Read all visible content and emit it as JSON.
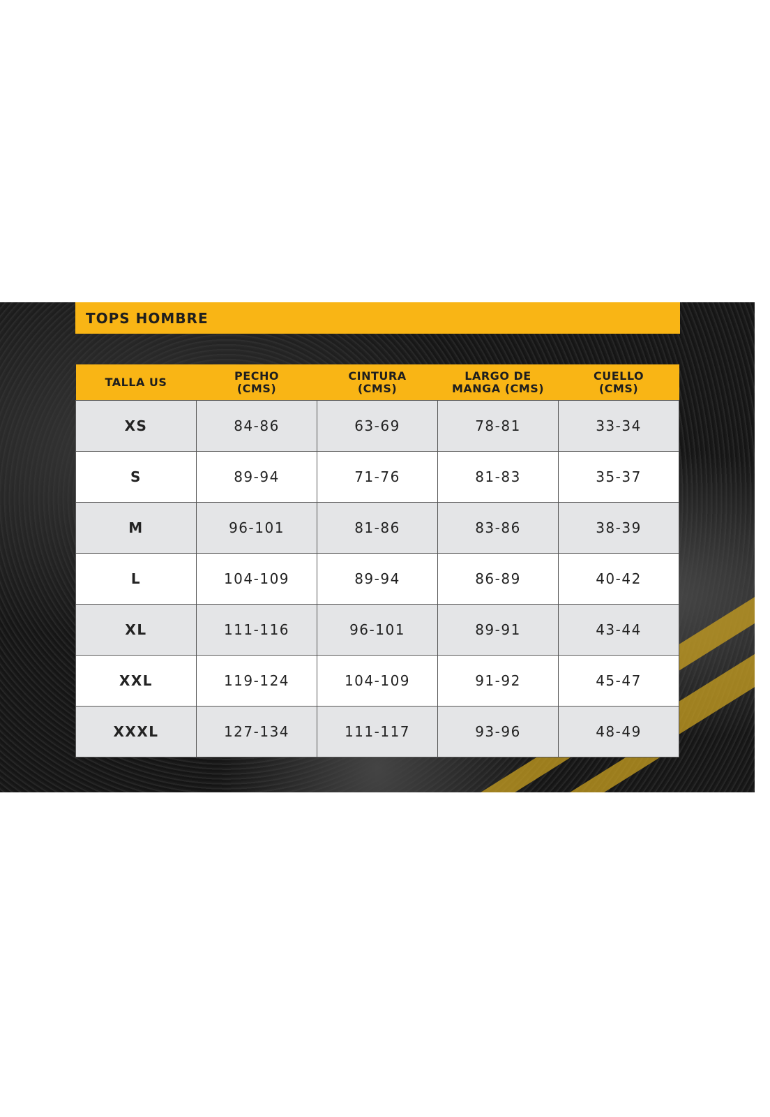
{
  "title": "TOPS HOMBRE",
  "colors": {
    "accent": "#F9B515",
    "row_alt": "#E4E5E7",
    "background": "#1C1C1C"
  },
  "table": {
    "headers": [
      [
        "TALLA US"
      ],
      [
        "PECHO",
        "(CMS)"
      ],
      [
        "CINTURA",
        "(CMS)"
      ],
      [
        "LARGO DE",
        "MANGA (CMS)"
      ],
      [
        "CUELLO",
        "(CMS)"
      ]
    ],
    "rows": [
      [
        "XS",
        "84-86",
        "63-69",
        "78-81",
        "33-34"
      ],
      [
        "S",
        "89-94",
        "71-76",
        "81-83",
        "35-37"
      ],
      [
        "M",
        "96-101",
        "81-86",
        "83-86",
        "38-39"
      ],
      [
        "L",
        "104-109",
        "89-94",
        "86-89",
        "40-42"
      ],
      [
        "XL",
        "111-116",
        "96-101",
        "89-91",
        "43-44"
      ],
      [
        "XXL",
        "119-124",
        "104-109",
        "91-92",
        "45-47"
      ],
      [
        "XXXL",
        "127-134",
        "111-117",
        "93-96",
        "48-49"
      ]
    ]
  }
}
